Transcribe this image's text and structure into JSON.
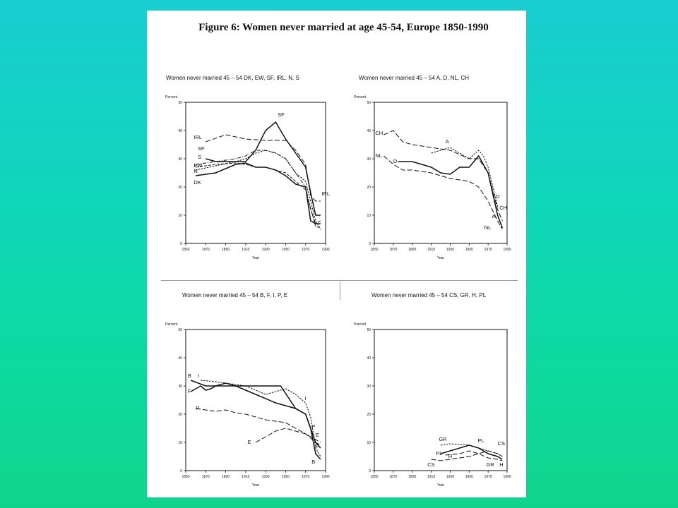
{
  "figure_title": "Figure 6: Women never married at age 45-54, Europe 1850-1990",
  "colors": {
    "background": "#12d3b0",
    "page": "#ffffff",
    "ink": "#111111"
  },
  "chart_data": [
    {
      "type": "line",
      "title": "Women never married 45 – 54 DK, EW, SF, IRL, N, S",
      "ylabel": "Percent",
      "xlabel": "Year",
      "xlim": [
        1850,
        1990
      ],
      "ylim": [
        0,
        50
      ],
      "xticks": [
        "1850",
        "1870",
        "1890",
        "1910",
        "1930",
        "1950",
        "1970",
        "1990"
      ],
      "yticks": [
        "0",
        "10",
        "20",
        "30",
        "40",
        "50"
      ],
      "series": [
        {
          "name": "DK",
          "dash": "solid",
          "x": [
            1860,
            1880,
            1900,
            1910,
            1920,
            1930,
            1940,
            1950,
            1960,
            1970,
            1975,
            1980,
            1985
          ],
          "y": [
            24,
            25,
            28,
            28.5,
            27,
            27,
            26,
            24,
            21,
            20,
            8,
            7,
            7
          ]
        },
        {
          "name": "EW",
          "dash": "dashed",
          "x": [
            1860,
            1880,
            1900,
            1910,
            1920,
            1930,
            1940,
            1950,
            1960,
            1970,
            1980,
            1985
          ],
          "y": [
            27,
            28,
            28.5,
            28,
            27,
            27,
            26,
            25,
            22,
            19,
            6,
            5.5
          ]
        },
        {
          "name": "SF",
          "dash": "solid",
          "x": [
            1870,
            1880,
            1890,
            1900,
            1910,
            1920,
            1930,
            1940,
            1950,
            1960,
            1970,
            1975,
            1980,
            1985
          ],
          "y": [
            30,
            29,
            29,
            29,
            29,
            33,
            40,
            43,
            37,
            32,
            27,
            18,
            10,
            10
          ]
        },
        {
          "name": "IRL",
          "dash": "longdash",
          "x": [
            1870,
            1890,
            1910,
            1930,
            1950,
            1960,
            1970,
            1975,
            1980,
            1985
          ],
          "y": [
            36,
            38.5,
            37,
            36.5,
            36.5,
            33,
            28,
            17,
            15,
            15
          ]
        },
        {
          "name": "N",
          "dash": "shortdash",
          "x": [
            1860,
            1880,
            1900,
            1910,
            1920,
            1930,
            1940,
            1950,
            1960,
            1970,
            1975,
            1980,
            1985
          ],
          "y": [
            26,
            27.5,
            29,
            30,
            32,
            33,
            32,
            30,
            25,
            22,
            15,
            8,
            5
          ]
        },
        {
          "name": "S",
          "dash": "dotdash",
          "x": [
            1860,
            1880,
            1900,
            1910,
            1920,
            1930,
            1940,
            1950,
            1960,
            1970,
            1975,
            1980,
            1985
          ],
          "y": [
            28,
            29,
            30,
            31,
            33,
            33,
            32,
            30,
            25,
            20,
            12,
            7,
            8
          ]
        }
      ]
    },
    {
      "type": "line",
      "title": "Women never married 45 – 54 A, D, NL, CH",
      "ylabel": "Percent",
      "xlabel": "Year",
      "xlim": [
        1850,
        1990
      ],
      "ylim": [
        0,
        50
      ],
      "xticks": [
        "1850",
        "1870",
        "1890",
        "1910",
        "1930",
        "1950",
        "1970",
        "1990"
      ],
      "yticks": [
        "0",
        "10",
        "20",
        "30",
        "40",
        "50"
      ],
      "series": [
        {
          "name": "CH",
          "dash": "longdash",
          "x": [
            1860,
            1870,
            1880,
            1890,
            1910,
            1930,
            1950,
            1960,
            1970,
            1980,
            1985
          ],
          "y": [
            38.5,
            40,
            36,
            35,
            34,
            33,
            30,
            30,
            25,
            12,
            8
          ]
        },
        {
          "name": "A",
          "dash": "shortdash",
          "x": [
            1910,
            1920,
            1930,
            1940,
            1950,
            1960,
            1965,
            1970,
            1975,
            1980
          ],
          "y": [
            32,
            33,
            34,
            32,
            30,
            33,
            31,
            27,
            20,
            13
          ]
        },
        {
          "name": "D",
          "dash": "solid",
          "x": [
            1875,
            1890,
            1900,
            1910,
            1920,
            1930,
            1940,
            1950,
            1960,
            1970,
            1980,
            1985
          ],
          "y": [
            29,
            29,
            28,
            27,
            25,
            24.5,
            27,
            27,
            31,
            25,
            10,
            5.5
          ]
        },
        {
          "name": "NL",
          "dash": "longdash",
          "x": [
            1860,
            1870,
            1880,
            1890,
            1910,
            1930,
            1950,
            1960,
            1970,
            1980,
            1985
          ],
          "y": [
            31,
            28,
            26,
            26,
            25,
            23,
            22,
            20,
            15,
            8,
            5
          ]
        }
      ]
    },
    {
      "type": "line",
      "title": "Women never married 45 – 54 B, F, I, P, E",
      "ylabel": "Percent",
      "xlabel": "Year",
      "xlim": [
        1850,
        1990
      ],
      "ylim": [
        0,
        50
      ],
      "xticks": [
        "1850",
        "1870",
        "1890",
        "1910",
        "1930",
        "1950",
        "1970",
        "1990"
      ],
      "yticks": [
        "0",
        "10",
        "20",
        "30",
        "40",
        "50"
      ],
      "series": [
        {
          "name": "B",
          "dash": "solid",
          "x": [
            1855,
            1870,
            1890,
            1910,
            1930,
            1945,
            1960,
            1970,
            1975,
            1980,
            1985
          ],
          "y": [
            32,
            30,
            30,
            30,
            30,
            30,
            22,
            20,
            15,
            6,
            4
          ]
        },
        {
          "name": "F",
          "dash": "solid",
          "x": [
            1855,
            1865,
            1870,
            1875,
            1880,
            1890,
            1900,
            1920,
            1940,
            1960,
            1970,
            1980,
            1985
          ],
          "y": [
            28,
            30,
            28.5,
            29,
            30,
            31,
            30,
            27,
            24,
            22,
            20,
            10,
            8
          ]
        },
        {
          "name": "I",
          "dash": "shortdash",
          "x": [
            1865,
            1880,
            1890,
            1910,
            1930,
            1940,
            1950,
            1960,
            1970,
            1975,
            1980,
            1985
          ],
          "y": [
            32,
            31.5,
            31,
            30,
            27,
            28,
            29,
            27,
            24,
            19,
            8,
            5
          ]
        },
        {
          "name": "P",
          "dash": "longdash",
          "x": [
            1860,
            1870,
            1880,
            1890,
            1900,
            1910,
            1930,
            1950,
            1960,
            1970,
            1980,
            1985
          ],
          "y": [
            22,
            21.5,
            21,
            21.5,
            20.5,
            20,
            18,
            17,
            15,
            13,
            10,
            9
          ]
        },
        {
          "name": "E",
          "dash": "longdash",
          "x": [
            1920,
            1930,
            1940,
            1950,
            1960,
            1970,
            1980,
            1985
          ],
          "y": [
            10,
            12,
            14,
            15,
            14,
            13,
            11,
            10
          ]
        }
      ]
    },
    {
      "type": "line",
      "title": "Women never married 45 – 54 CS, GR, H, PL",
      "ylabel": "Percent",
      "xlabel": "Year",
      "xlim": [
        1850,
        1990
      ],
      "ylim": [
        0,
        50
      ],
      "xticks": [
        "1850",
        "1870",
        "1890",
        "1910",
        "1930",
        "1950",
        "1970",
        "1990"
      ],
      "yticks": [
        "0",
        "10",
        "20",
        "30",
        "40",
        "50"
      ],
      "series": [
        {
          "name": "GR",
          "dash": "shortdash",
          "x": [
            1920,
            1930,
            1950,
            1960,
            1970,
            1980,
            1985
          ],
          "y": [
            9,
            9.5,
            9,
            8,
            7,
            6,
            5
          ]
        },
        {
          "name": "PL",
          "dash": "solid",
          "x": [
            1920,
            1930,
            1950,
            1960,
            1970,
            1980,
            1985
          ],
          "y": [
            6,
            7,
            9,
            8,
            6,
            5,
            4
          ]
        },
        {
          "name": "H",
          "dash": "longdash",
          "x": [
            1925,
            1940,
            1950,
            1960,
            1970,
            1980,
            1985
          ],
          "y": [
            5.5,
            6,
            7,
            6,
            4.5,
            4,
            3.5
          ]
        },
        {
          "name": "CS",
          "dash": "longdash",
          "x": [
            1910,
            1920,
            1930,
            1950,
            1960,
            1970,
            1980,
            1985
          ],
          "y": [
            4,
            3.5,
            4,
            5,
            6,
            7,
            6,
            5
          ]
        }
      ]
    }
  ]
}
